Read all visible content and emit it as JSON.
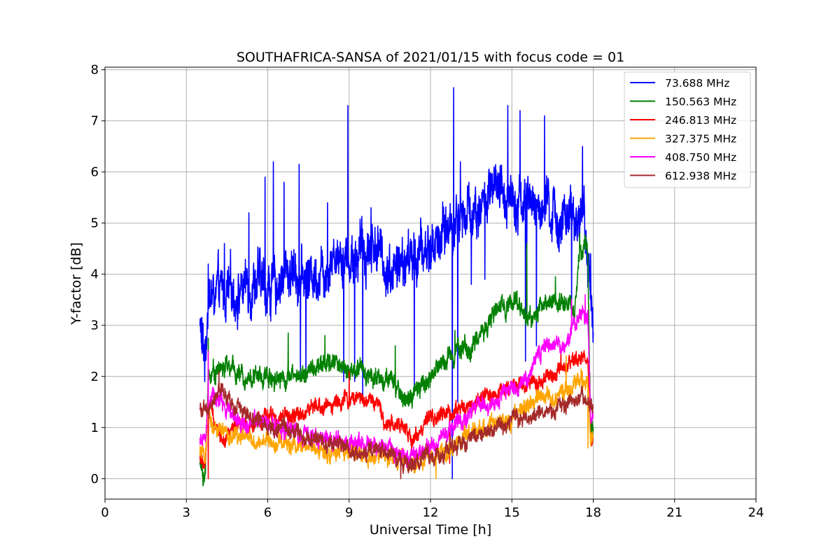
{
  "chart_data": {
    "type": "line",
    "title": "SOUTHAFRICA-SANSA of 2021/01/15 with focus code = 01",
    "xlabel": "Universal Time [h]",
    "ylabel": "Y-factor [dB]",
    "xlim": [
      0,
      24
    ],
    "ylim": [
      -0.4,
      8.05
    ],
    "xticks": [
      0,
      3,
      6,
      9,
      12,
      15,
      18,
      21,
      24
    ],
    "yticks": [
      0,
      1,
      2,
      3,
      4,
      5,
      6,
      7,
      8
    ],
    "grid": true,
    "legend_position": "top-right",
    "series": [
      {
        "name": "73.688 MHz",
        "color": "#0000ff",
        "x": [
          3.5,
          3.6,
          3.7,
          3.8,
          4.0,
          4.3,
          4.6,
          5.0,
          5.3,
          5.6,
          6.0,
          6.3,
          6.6,
          7.0,
          7.3,
          7.6,
          8.0,
          8.3,
          8.6,
          9.0,
          9.3,
          9.6,
          10.0,
          10.3,
          10.6,
          11.0,
          11.3,
          11.6,
          12.0,
          12.3,
          12.6,
          13.0,
          13.3,
          13.6,
          14.0,
          14.3,
          14.6,
          15.0,
          15.3,
          15.6,
          16.0,
          16.3,
          16.6,
          17.0,
          17.3,
          17.6,
          17.8,
          17.9,
          18.0
        ],
        "y": [
          3.1,
          2.5,
          2.4,
          3.6,
          3.55,
          3.6,
          3.6,
          3.7,
          3.8,
          3.9,
          3.7,
          3.8,
          4.0,
          4.1,
          3.9,
          4.0,
          4.1,
          4.3,
          4.5,
          4.3,
          4.4,
          4.5,
          4.6,
          4.2,
          4.1,
          4.2,
          4.3,
          4.4,
          4.5,
          4.7,
          4.9,
          5.1,
          5.2,
          5.3,
          5.4,
          5.6,
          5.5,
          5.6,
          5.5,
          5.4,
          5.3,
          5.2,
          5.1,
          5.0,
          5.0,
          5.4,
          4.3,
          3.4,
          3.3
        ],
        "noise": 0.65,
        "spikes": [
          [
            3.8,
            4.2
          ],
          [
            4.4,
            4.6
          ],
          [
            5.3,
            5.2
          ],
          [
            5.9,
            5.9
          ],
          [
            6.2,
            6.2
          ],
          [
            6.6,
            5.8
          ],
          [
            7.15,
            6.15
          ],
          [
            7.2,
            2.0
          ],
          [
            7.4,
            1.9
          ],
          [
            8.2,
            5.4
          ],
          [
            8.8,
            1.9
          ],
          [
            8.95,
            7.3
          ],
          [
            9.2,
            1.9
          ],
          [
            9.5,
            1.6
          ],
          [
            9.8,
            5.3
          ],
          [
            11.4,
            1.8
          ],
          [
            12.8,
            0.0
          ],
          [
            12.85,
            7.65
          ],
          [
            13.0,
            1.5
          ],
          [
            13.1,
            6.2
          ],
          [
            13.5,
            3.8
          ],
          [
            14.0,
            3.9
          ],
          [
            14.85,
            7.3
          ],
          [
            15.3,
            7.2
          ],
          [
            15.5,
            2.3
          ],
          [
            15.55,
            4.5
          ],
          [
            15.9,
            2.6
          ],
          [
            16.2,
            7.1
          ],
          [
            17.2,
            3.3
          ],
          [
            17.6,
            6.5
          ],
          [
            17.9,
            4.4
          ]
        ]
      },
      {
        "name": "150.563 MHz",
        "color": "#008000",
        "x": [
          3.5,
          3.6,
          3.7,
          3.8,
          4.0,
          4.5,
          5.0,
          5.5,
          6.0,
          6.5,
          7.0,
          7.5,
          8.0,
          8.5,
          9.0,
          9.5,
          10.0,
          10.5,
          11.0,
          11.3,
          11.6,
          12.0,
          12.5,
          13.0,
          13.5,
          14.0,
          14.5,
          15.0,
          15.3,
          15.6,
          16.0,
          16.5,
          17.0,
          17.3,
          17.5,
          17.7,
          17.8,
          17.9,
          18.0
        ],
        "y": [
          0.3,
          0.1,
          0.05,
          2.0,
          2.1,
          2.2,
          2.0,
          2.0,
          2.0,
          2.0,
          2.0,
          2.1,
          2.2,
          2.3,
          2.1,
          2.1,
          2.0,
          1.9,
          1.6,
          1.55,
          1.75,
          2.0,
          2.3,
          2.6,
          2.5,
          3.0,
          3.3,
          3.5,
          3.4,
          3.1,
          3.3,
          3.5,
          3.5,
          3.2,
          4.4,
          4.5,
          4.3,
          1.0,
          1.0
        ],
        "noise": 0.25,
        "spikes": [
          [
            3.8,
            2.75
          ],
          [
            6.75,
            2.85
          ],
          [
            8.1,
            2.8
          ],
          [
            10.7,
            2.6
          ],
          [
            12.9,
            2.9
          ],
          [
            15.55,
            4.6
          ],
          [
            16.6,
            3.95
          ],
          [
            17.5,
            4.8
          ]
        ]
      },
      {
        "name": "246.813 MHz",
        "color": "#ff0000",
        "x": [
          3.5,
          3.6,
          3.7,
          3.8,
          4.0,
          4.3,
          4.6,
          5.0,
          5.5,
          6.0,
          6.5,
          7.0,
          7.5,
          8.0,
          8.5,
          9.0,
          9.5,
          10.0,
          10.3,
          10.6,
          11.0,
          11.3,
          11.6,
          12.0,
          12.5,
          13.0,
          13.5,
          14.0,
          14.5,
          15.0,
          15.5,
          16.0,
          16.5,
          17.0,
          17.3,
          17.6,
          17.8,
          17.9,
          18.0
        ],
        "y": [
          0.4,
          0.3,
          0.3,
          1.5,
          1.2,
          0.8,
          0.9,
          1.0,
          1.1,
          1.2,
          1.2,
          1.2,
          1.35,
          1.4,
          1.5,
          1.55,
          1.6,
          1.5,
          1.1,
          1.1,
          1.0,
          0.75,
          0.95,
          1.15,
          1.25,
          1.35,
          1.45,
          1.6,
          1.7,
          1.85,
          1.85,
          1.9,
          2.0,
          2.1,
          2.3,
          2.4,
          2.3,
          0.75,
          0.75
        ],
        "noise": 0.2,
        "spikes": [
          [
            3.8,
            0.0
          ],
          [
            9.0,
            2.1
          ],
          [
            12.7,
            0.3
          ],
          [
            16.8,
            2.5
          ]
        ]
      },
      {
        "name": "327.375 MHz",
        "color": "#ffa500",
        "x": [
          3.5,
          3.6,
          3.7,
          3.8,
          4.0,
          4.3,
          4.6,
          5.0,
          5.5,
          6.0,
          6.5,
          7.0,
          7.5,
          8.0,
          8.5,
          9.0,
          9.5,
          10.0,
          10.5,
          11.0,
          11.5,
          12.0,
          12.5,
          13.0,
          13.5,
          14.0,
          14.5,
          15.0,
          15.5,
          16.0,
          16.5,
          17.0,
          17.3,
          17.6,
          17.8,
          17.9,
          18.0
        ],
        "y": [
          0.5,
          0.5,
          0.4,
          1.3,
          1.0,
          0.9,
          0.8,
          0.85,
          0.7,
          0.75,
          0.7,
          0.65,
          0.6,
          0.55,
          0.5,
          0.5,
          0.45,
          0.45,
          0.4,
          0.35,
          0.3,
          0.4,
          0.55,
          0.7,
          0.85,
          1.0,
          1.1,
          1.2,
          1.4,
          1.6,
          1.6,
          1.7,
          1.8,
          2.0,
          1.9,
          0.8,
          0.8
        ],
        "noise": 0.22,
        "spikes": [
          [
            3.8,
            2.5
          ],
          [
            12.2,
            0.0
          ],
          [
            17.0,
            2.4
          ],
          [
            17.8,
            0.6
          ]
        ]
      },
      {
        "name": "408.750 MHz",
        "color": "#ff00ff",
        "x": [
          3.5,
          3.6,
          3.7,
          3.8,
          4.0,
          4.3,
          4.6,
          5.0,
          5.5,
          6.0,
          6.5,
          7.0,
          7.5,
          8.0,
          8.5,
          9.0,
          9.5,
          10.0,
          10.5,
          11.0,
          11.5,
          12.0,
          12.5,
          13.0,
          13.5,
          14.0,
          14.5,
          15.0,
          15.5,
          15.8,
          16.0,
          16.5,
          17.0,
          17.3,
          17.6,
          17.8,
          17.9,
          18.0
        ],
        "y": [
          0.8,
          0.75,
          0.7,
          1.4,
          1.6,
          1.5,
          1.3,
          1.1,
          1.1,
          1.05,
          1.0,
          0.9,
          0.85,
          0.8,
          0.75,
          0.7,
          0.65,
          0.65,
          0.6,
          0.5,
          0.45,
          0.6,
          0.85,
          1.1,
          1.3,
          1.5,
          1.6,
          1.75,
          1.9,
          2.3,
          2.5,
          2.6,
          2.7,
          2.95,
          3.2,
          3.3,
          1.2,
          1.2
        ],
        "noise": 0.22,
        "spikes": [
          [
            3.8,
            2.5
          ],
          [
            17.2,
            3.5
          ],
          [
            17.7,
            3.6
          ]
        ]
      },
      {
        "name": "612.938 MHz",
        "color": "#a52a2a",
        "x": [
          3.5,
          3.6,
          3.7,
          3.8,
          4.0,
          4.2,
          4.5,
          5.0,
          5.5,
          6.0,
          6.5,
          7.0,
          7.5,
          8.0,
          8.5,
          9.0,
          9.5,
          10.0,
          10.5,
          11.0,
          11.5,
          12.0,
          12.5,
          13.0,
          13.5,
          14.0,
          14.5,
          15.0,
          15.5,
          16.0,
          16.5,
          17.0,
          17.3,
          17.6,
          17.8,
          17.9,
          18.0
        ],
        "y": [
          1.4,
          1.35,
          1.3,
          1.3,
          1.5,
          1.8,
          1.5,
          1.35,
          1.2,
          1.05,
          1.0,
          0.9,
          0.8,
          0.75,
          0.7,
          0.6,
          0.5,
          0.5,
          0.45,
          0.3,
          0.35,
          0.4,
          0.5,
          0.65,
          0.8,
          0.9,
          1.0,
          1.1,
          1.2,
          1.25,
          1.35,
          1.4,
          1.5,
          1.6,
          1.55,
          1.45,
          1.4
        ],
        "noise": 0.2,
        "spikes": [
          [
            4.2,
            2.1
          ],
          [
            10.9,
            0.0
          ]
        ]
      }
    ]
  }
}
